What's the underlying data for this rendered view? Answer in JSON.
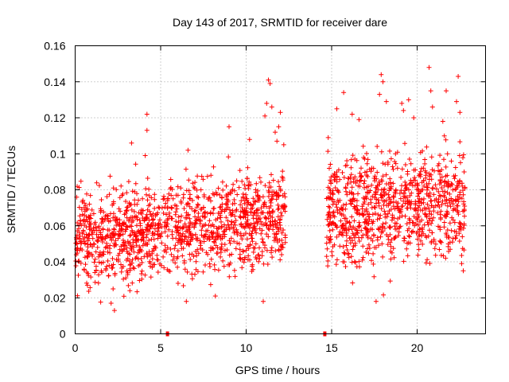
{
  "chart_data": {
    "type": "scatter",
    "title": "Day 143 of 2017, SRMTID for receiver dare",
    "xlabel": "GPS time / hours",
    "ylabel": "SRMTID / TECUs",
    "xlim": [
      0,
      24
    ],
    "ylim": [
      0,
      0.16
    ],
    "xticks": [
      0,
      5,
      10,
      15,
      20
    ],
    "xtick_labels": [
      "0",
      "5",
      "10",
      "15",
      "20"
    ],
    "yticks": [
      0,
      0.02,
      0.04,
      0.06,
      0.08,
      0.1,
      0.12,
      0.14,
      0.16
    ],
    "ytick_labels": [
      "0",
      "0.02",
      "0.04",
      "0.06",
      "0.08",
      "0.1",
      "0.12",
      "0.14",
      "0.16"
    ],
    "grid": true,
    "marker": "+",
    "color": "#ff0000",
    "series": [
      {
        "name": "SRMTID",
        "segments": [
          {
            "x_start": 0.0,
            "x_end": 12.3,
            "n": 1300,
            "mean_center": 0.052,
            "mean_end": 0.066,
            "spread": 0.013,
            "min": 0.013,
            "max": 0.1
          },
          {
            "x_start": 14.7,
            "x_end": 22.8,
            "n": 900,
            "mean_center": 0.066,
            "mean_end": 0.074,
            "spread": 0.015,
            "min": 0.018,
            "max": 0.11
          }
        ],
        "outliers": [
          {
            "x": 4.2,
            "y": 0.122
          },
          {
            "x": 4.2,
            "y": 0.113
          },
          {
            "x": 4.1,
            "y": 0.099
          },
          {
            "x": 3.3,
            "y": 0.106
          },
          {
            "x": 6.6,
            "y": 0.102
          },
          {
            "x": 9.0,
            "y": 0.115
          },
          {
            "x": 11.3,
            "y": 0.141
          },
          {
            "x": 11.4,
            "y": 0.139
          },
          {
            "x": 11.2,
            "y": 0.128
          },
          {
            "x": 11.5,
            "y": 0.126
          },
          {
            "x": 11.1,
            "y": 0.121
          },
          {
            "x": 12.0,
            "y": 0.123
          },
          {
            "x": 11.9,
            "y": 0.115
          },
          {
            "x": 11.7,
            "y": 0.112
          },
          {
            "x": 10.2,
            "y": 0.108
          },
          {
            "x": 12.2,
            "y": 0.105
          },
          {
            "x": 11.8,
            "y": 0.107
          },
          {
            "x": 15.7,
            "y": 0.134
          },
          {
            "x": 15.3,
            "y": 0.125
          },
          {
            "x": 16.2,
            "y": 0.122
          },
          {
            "x": 16.6,
            "y": 0.119
          },
          {
            "x": 17.9,
            "y": 0.144
          },
          {
            "x": 18.0,
            "y": 0.14
          },
          {
            "x": 17.8,
            "y": 0.133
          },
          {
            "x": 18.2,
            "y": 0.129
          },
          {
            "x": 19.1,
            "y": 0.128
          },
          {
            "x": 19.2,
            "y": 0.124
          },
          {
            "x": 19.5,
            "y": 0.13
          },
          {
            "x": 20.7,
            "y": 0.148
          },
          {
            "x": 20.8,
            "y": 0.135
          },
          {
            "x": 21.7,
            "y": 0.135
          },
          {
            "x": 22.4,
            "y": 0.143
          },
          {
            "x": 22.3,
            "y": 0.129
          },
          {
            "x": 22.5,
            "y": 0.123
          },
          {
            "x": 21.5,
            "y": 0.118
          },
          {
            "x": 14.8,
            "y": 0.109
          },
          {
            "x": 19.8,
            "y": 0.12
          },
          {
            "x": 20.9,
            "y": 0.126
          },
          {
            "x": 22.7,
            "y": 0.035
          },
          {
            "x": 17.6,
            "y": 0.018
          },
          {
            "x": 2.3,
            "y": 0.013
          },
          {
            "x": 2.1,
            "y": 0.017
          },
          {
            "x": 11.0,
            "y": 0.018
          },
          {
            "x": 8.2,
            "y": 0.021
          },
          {
            "x": 6.5,
            "y": 0.018
          }
        ]
      }
    ],
    "axis_markers": [
      {
        "x": 5.4,
        "y": 0
      },
      {
        "x": 14.6,
        "y": 0
      }
    ]
  }
}
